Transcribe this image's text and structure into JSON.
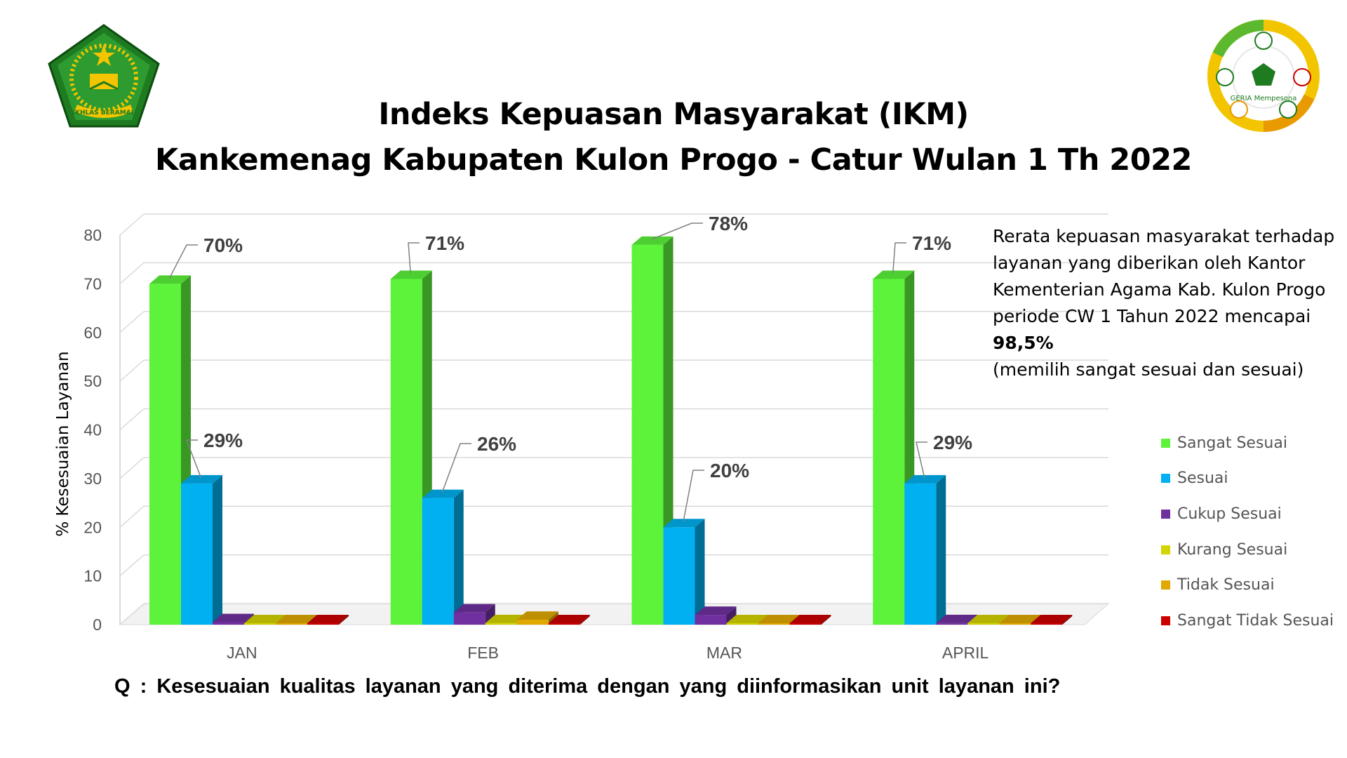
{
  "title_line1": "Indeks Kepuasan Masyarakat (IKM)",
  "title_line2": "Kankemenag Kabupaten Kulon Progo - Catur Wulan 1 Th 2022",
  "note": {
    "text": "Rerata kepuasan masyarakat terhadap layanan yang diberikan oleh Kantor Kementerian Agama Kab. Kulon Progo periode CW 1 Tahun 2022 mencapai",
    "highlight": "98,5%",
    "suffix": "(memilih sangat sesuai dan sesuai)"
  },
  "question": "Q : Kesesuaian kualitas layanan yang diterima dengan yang diinformasikan unit layanan ini?",
  "logos": {
    "left": {
      "icon": "kemenag-emblem-icon",
      "text": "IKHLAS BERAMAL"
    },
    "right": {
      "icon": "geria-badge-icon",
      "text": "GERIA Mempesona"
    }
  },
  "colors": {
    "Sangat Sesuai": "#5CF33A",
    "Sesuai": "#00B0F0",
    "Cukup Sesuai": "#7030A0",
    "Kurang Sesuai": "#D4D400",
    "Tidak Sesuai": "#E0A800",
    "Sangat Tidak Sesuai": "#CC0000"
  },
  "chart_data": {
    "type": "bar",
    "ylabel": "% Kesesuaian Layanan",
    "ylim": [
      0,
      80
    ],
    "yticks": [
      0,
      10,
      20,
      30,
      40,
      50,
      60,
      70,
      80
    ],
    "categories": [
      "JAN",
      "FEB",
      "MAR",
      "APRIL"
    ],
    "series": [
      {
        "name": "Sangat Sesuai",
        "values": [
          70,
          71,
          78,
          71
        ],
        "labels": [
          "70%",
          "71%",
          "78%",
          "71%"
        ]
      },
      {
        "name": "Sesuai",
        "values": [
          29,
          26,
          20,
          29
        ],
        "labels": [
          "29%",
          "26%",
          "20%",
          "29%"
        ]
      },
      {
        "name": "Cukup Sesuai",
        "values": [
          0.5,
          2.5,
          2,
          0.3
        ]
      },
      {
        "name": "Kurang Sesuai",
        "values": [
          0.2,
          0.3,
          0.2,
          0.2
        ]
      },
      {
        "name": "Tidak Sesuai",
        "values": [
          0.2,
          1,
          0.2,
          0.2
        ]
      },
      {
        "name": "Sangat Tidak Sesuai",
        "values": [
          0.2,
          0.2,
          0.2,
          0.2
        ]
      }
    ],
    "legend_position": "right",
    "grid": true
  }
}
